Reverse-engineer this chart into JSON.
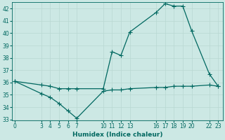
{
  "xlabel": "Humidex (Indice chaleur)",
  "bg_color": "#cce8e4",
  "grid_color": "#b8d8d2",
  "line_color": "#006860",
  "spine_color": "#006860",
  "ylim": [
    33,
    42.5
  ],
  "xlim": [
    -0.3,
    23.5
  ],
  "yticks": [
    33,
    34,
    35,
    36,
    37,
    38,
    39,
    40,
    41,
    42
  ],
  "xticks": [
    0,
    3,
    4,
    5,
    6,
    7,
    10,
    11,
    12,
    13,
    16,
    17,
    18,
    19,
    20,
    22,
    23
  ],
  "line1_x": [
    0,
    3,
    4,
    5,
    6,
    7,
    10,
    11,
    12,
    13,
    16,
    17,
    18,
    19,
    20,
    22,
    23
  ],
  "line1_y": [
    36.1,
    35.8,
    35.7,
    35.5,
    35.5,
    35.5,
    35.5,
    38.5,
    38.2,
    40.1,
    41.7,
    42.4,
    42.2,
    42.2,
    40.2,
    36.7,
    35.7
  ],
  "line2_x": [
    0,
    3,
    4,
    5,
    6,
    7,
    10,
    11,
    12,
    13,
    16,
    17,
    18,
    19,
    20,
    22,
    23
  ],
  "line2_y": [
    36.1,
    35.1,
    34.8,
    34.3,
    33.7,
    33.1,
    35.3,
    35.4,
    35.4,
    35.5,
    35.6,
    35.6,
    35.7,
    35.7,
    35.7,
    35.8,
    35.7
  ],
  "xlabel_fontsize": 6.5,
  "tick_fontsize": 5.5,
  "marker": "+",
  "markersize": 4.0,
  "linewidth": 0.9
}
